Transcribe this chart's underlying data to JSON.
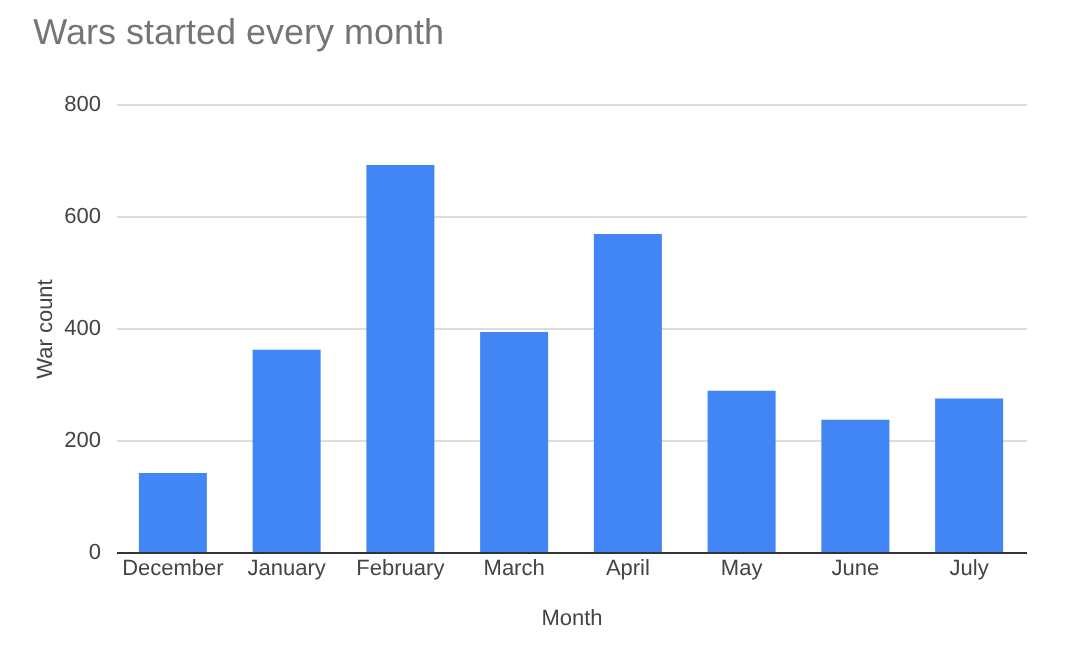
{
  "chart_data": {
    "type": "bar",
    "title": "Wars started every month",
    "xlabel": "Month",
    "ylabel": "War count",
    "categories": [
      "December",
      "January",
      "February",
      "March",
      "April",
      "May",
      "June",
      "July"
    ],
    "values": [
      141,
      361,
      691,
      393,
      568,
      288,
      236,
      274
    ],
    "color": "#4285f4",
    "ylim": [
      0,
      800
    ],
    "yticks": [
      0,
      200,
      400,
      600,
      800
    ],
    "grid": "y"
  }
}
